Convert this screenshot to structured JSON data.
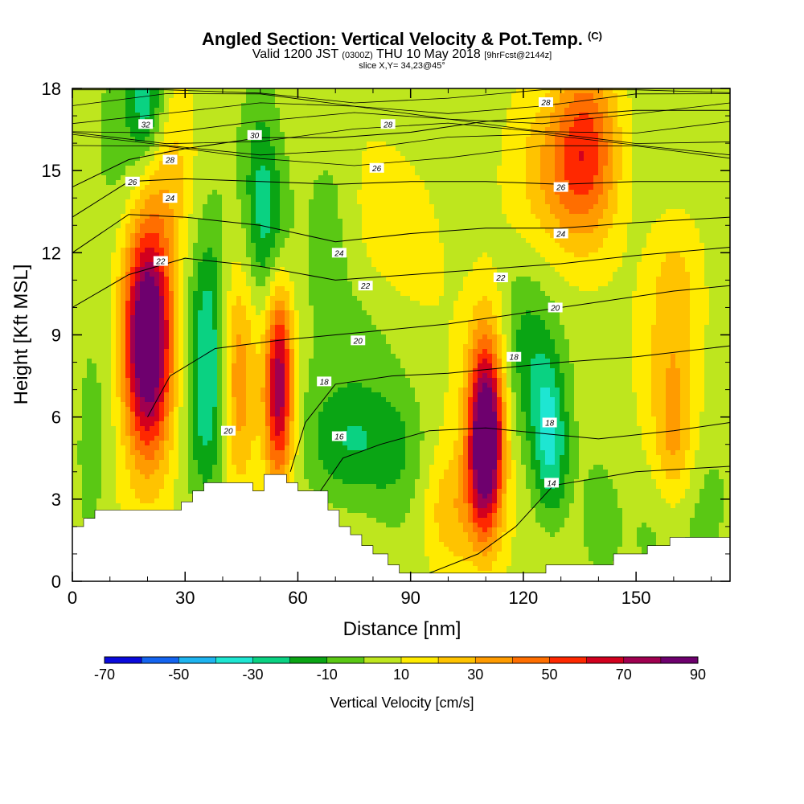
{
  "header": {
    "title": "Angled Section: Vertical Velocity & Pot.Temp.",
    "title_unit": "(C)",
    "valid_prefix": "Valid 1200 JST",
    "valid_z": "(0300Z)",
    "valid_date": "THU 10 May 2018",
    "valid_fcst": "[9hrFcst@2144z]",
    "slice": "slice X,Y= 34,23@45°"
  },
  "chart_data": {
    "type": "heatmap",
    "xlabel": "Distance [nm]",
    "ylabel": "Height [Kft MSL]",
    "xlim": [
      0,
      175
    ],
    "ylim": [
      0,
      18
    ],
    "x_ticks": [
      "0",
      "30",
      "60",
      "90",
      "120",
      "150"
    ],
    "y_ticks": [
      "0",
      "3",
      "6",
      "9",
      "12",
      "15",
      "18"
    ],
    "colorbar": {
      "label": "Vertical Velocity [cm/s]",
      "tick_labels": [
        "-70",
        "-50",
        "-30",
        "-10",
        "10",
        "30",
        "50",
        "70",
        "90"
      ],
      "levels": [
        -70,
        -60,
        -50,
        -40,
        -30,
        -20,
        -10,
        0,
        10,
        20,
        30,
        40,
        50,
        60,
        70,
        80,
        90
      ],
      "colors": [
        "#0a0adc",
        "#1464f0",
        "#1eb4f0",
        "#1ee6d2",
        "#0ad282",
        "#0aa514",
        "#5ac814",
        "#bee61e",
        "#ffeb00",
        "#ffc300",
        "#ff9b00",
        "#ff6e00",
        "#ff2800",
        "#d2001e",
        "#a00050",
        "#6e006e"
      ]
    },
    "velocity_cells": [
      {
        "x": 20,
        "z": 9.5,
        "w": 82,
        "sx": 4.5,
        "sz": 2.6
      },
      {
        "x": 20,
        "z": 6.8,
        "w": 35,
        "sx": 4.5,
        "sz": 2.5
      },
      {
        "x": 55,
        "z": 7.8,
        "w": 62,
        "sx": 2.6,
        "sz": 2.3
      },
      {
        "x": 55,
        "z": 5.2,
        "w": 22,
        "sx": 3,
        "sz": 1.8
      },
      {
        "x": 44,
        "z": 7.2,
        "w": 30,
        "sx": 3.2,
        "sz": 3
      },
      {
        "x": 110,
        "z": 4.8,
        "w": 82,
        "sx": 3.2,
        "sz": 2.2
      },
      {
        "x": 110,
        "z": 6.8,
        "w": 30,
        "sx": 3.5,
        "sz": 2.4
      },
      {
        "x": 101,
        "z": 2.5,
        "w": 24,
        "sx": 6,
        "sz": 1.8
      },
      {
        "x": 137,
        "z": 16,
        "w": 38,
        "sx": 6,
        "sz": 2.4
      },
      {
        "x": 130,
        "z": 14.8,
        "w": 20,
        "sx": 9,
        "sz": 2
      },
      {
        "x": 87,
        "z": 12.8,
        "w": 14,
        "sx": 8,
        "sz": 2
      },
      {
        "x": 160,
        "z": 5.2,
        "w": 26,
        "sx": 4,
        "sz": 2.2
      },
      {
        "x": 160,
        "z": 10.5,
        "w": 18,
        "sx": 5,
        "sz": 2.2
      },
      {
        "x": 26,
        "z": 15,
        "w": 18,
        "sx": 5,
        "sz": 2.5
      },
      {
        "x": 36,
        "z": 9,
        "w": -34,
        "sx": 3.8,
        "sz": 2.7
      },
      {
        "x": 36,
        "z": 5.5,
        "w": -18,
        "sx": 4,
        "sz": 2
      },
      {
        "x": 20,
        "z": 17.5,
        "w": -32,
        "sx": 3.5,
        "sz": 1.5
      },
      {
        "x": 13,
        "z": 16,
        "w": -14,
        "sx": 6,
        "sz": 2.5
      },
      {
        "x": 52,
        "z": 12.8,
        "w": -24,
        "sx": 4,
        "sz": 2.2
      },
      {
        "x": 50,
        "z": 15.5,
        "w": -12,
        "sx": 3,
        "sz": 2.2
      },
      {
        "x": 74,
        "z": 5,
        "w": -24,
        "sx": 9,
        "sz": 1.6
      },
      {
        "x": 88,
        "z": 4.6,
        "w": -12,
        "sx": 6,
        "sz": 2
      },
      {
        "x": 126,
        "z": 5.8,
        "w": -30,
        "sx": 3.2,
        "sz": 2.2
      },
      {
        "x": 129,
        "z": 4.4,
        "w": -16,
        "sx": 3,
        "sz": 1.8
      },
      {
        "x": 120,
        "z": 8.5,
        "w": -16,
        "sx": 4,
        "sz": 2.2
      },
      {
        "x": 140,
        "z": 2.2,
        "w": -14,
        "sx": 3.5,
        "sz": 1.5
      },
      {
        "x": 160,
        "z": 2.3,
        "w": -8,
        "sx": 8,
        "sz": 1.5
      },
      {
        "x": 68,
        "z": 13.5,
        "w": -12,
        "sx": 5,
        "sz": 2.5
      },
      {
        "x": 80,
        "z": 9.4,
        "w": -6,
        "sx": 9,
        "sz": 2
      },
      {
        "x": 5,
        "z": 4.2,
        "w": -10,
        "sx": 3,
        "sz": 3
      },
      {
        "x": 170,
        "z": 3,
        "w": -6,
        "sx": 5,
        "sz": 2
      }
    ],
    "terrain": [
      [
        0,
        2.0
      ],
      [
        3,
        2.0
      ],
      [
        3,
        2.3
      ],
      [
        6,
        2.3
      ],
      [
        6,
        2.6
      ],
      [
        24,
        2.6
      ],
      [
        29,
        2.6
      ],
      [
        29,
        2.9
      ],
      [
        32,
        2.9
      ],
      [
        32,
        3.3
      ],
      [
        35,
        3.3
      ],
      [
        35,
        3.6
      ],
      [
        48,
        3.6
      ],
      [
        48,
        3.3
      ],
      [
        51,
        3.3
      ],
      [
        51,
        3.9
      ],
      [
        57,
        3.9
      ],
      [
        57,
        3.6
      ],
      [
        60,
        3.6
      ],
      [
        60,
        3.3
      ],
      [
        68,
        3.3
      ],
      [
        68,
        2.6
      ],
      [
        71,
        2.6
      ],
      [
        71,
        2.0
      ],
      [
        74,
        2.0
      ],
      [
        74,
        1.7
      ],
      [
        77,
        1.7
      ],
      [
        77,
        1.3
      ],
      [
        80,
        1.3
      ],
      [
        80,
        1.0
      ],
      [
        84,
        1.0
      ],
      [
        84,
        0.6
      ],
      [
        87,
        0.6
      ],
      [
        87,
        0.3
      ],
      [
        126,
        0.3
      ],
      [
        126,
        0.6
      ],
      [
        144,
        0.6
      ],
      [
        144,
        1.0
      ],
      [
        153,
        1.0
      ],
      [
        153,
        1.3
      ],
      [
        159,
        1.3
      ],
      [
        159,
        1.6
      ],
      [
        175,
        1.6
      ]
    ],
    "theta_contours": [
      {
        "label": "14",
        "pts": [
          [
            95,
            0.3
          ],
          [
            108,
            1.0
          ],
          [
            118,
            2.0
          ],
          [
            128,
            3.5
          ],
          [
            150,
            4.0
          ],
          [
            175,
            4.2
          ]
        ]
      },
      {
        "label": "16",
        "pts": [
          [
            66,
            3.3
          ],
          [
            72,
            4.5
          ],
          [
            82,
            5.0
          ],
          [
            95,
            5.5
          ],
          [
            110,
            5.6
          ],
          [
            125,
            5.4
          ],
          [
            140,
            5.2
          ],
          [
            160,
            5.5
          ],
          [
            175,
            5.8
          ]
        ]
      },
      {
        "label": "18",
        "pts": [
          [
            58,
            4.0
          ],
          [
            62,
            5.8
          ],
          [
            70,
            7.2
          ],
          [
            85,
            7.5
          ],
          [
            100,
            7.6
          ],
          [
            115,
            7.8
          ],
          [
            130,
            8.0
          ],
          [
            150,
            8.2
          ],
          [
            175,
            8.6
          ]
        ]
      },
      {
        "label": "20",
        "pts": [
          [
            20,
            6.0
          ],
          [
            26,
            7.5
          ],
          [
            38,
            8.5
          ],
          [
            55,
            8.8
          ],
          [
            70,
            9.0
          ],
          [
            85,
            9.2
          ],
          [
            100,
            9.4
          ],
          [
            120,
            9.8
          ],
          [
            140,
            10.2
          ],
          [
            160,
            10.6
          ],
          [
            175,
            10.8
          ]
        ]
      },
      {
        "label": "22",
        "pts": [
          [
            0,
            10.0
          ],
          [
            15,
            11.2
          ],
          [
            30,
            11.8
          ],
          [
            50,
            11.5
          ],
          [
            70,
            11.0
          ],
          [
            90,
            11.2
          ],
          [
            110,
            11.4
          ],
          [
            130,
            11.6
          ],
          [
            150,
            11.9
          ],
          [
            175,
            12.2
          ]
        ]
      },
      {
        "label": "24",
        "pts": [
          [
            0,
            12.0
          ],
          [
            15,
            13.4
          ],
          [
            30,
            13.3
          ],
          [
            50,
            13.0
          ],
          [
            70,
            12.4
          ],
          [
            90,
            12.7
          ],
          [
            110,
            12.9
          ],
          [
            130,
            12.9
          ],
          [
            150,
            13.1
          ],
          [
            175,
            13.3
          ]
        ]
      },
      {
        "label": "26",
        "pts": [
          [
            0,
            13.3
          ],
          [
            15,
            14.6
          ],
          [
            30,
            14.7
          ],
          [
            50,
            14.6
          ],
          [
            70,
            14.5
          ],
          [
            90,
            14.6
          ],
          [
            110,
            14.6
          ],
          [
            130,
            14.5
          ],
          [
            150,
            14.6
          ],
          [
            175,
            14.6
          ]
        ]
      },
      {
        "label": "28",
        "pts": [
          [
            0,
            14.4
          ],
          [
            15,
            15.4
          ],
          [
            30,
            15.8
          ],
          [
            50,
            16.2
          ],
          [
            70,
            16.2
          ],
          [
            90,
            16.4
          ],
          [
            110,
            16.8
          ],
          [
            130,
            17.0
          ],
          [
            150,
            17.2
          ],
          [
            175,
            17.2
          ]
        ]
      }
    ],
    "contour_labels": [
      {
        "text": "32",
        "x": 19.5,
        "z": 16.7
      },
      {
        "text": "28",
        "x": 26,
        "z": 15.4
      },
      {
        "text": "26",
        "x": 16,
        "z": 14.6
      },
      {
        "text": "24",
        "x": 26,
        "z": 14.0
      },
      {
        "text": "30",
        "x": 48.5,
        "z": 16.3
      },
      {
        "text": "28",
        "x": 84,
        "z": 16.7
      },
      {
        "text": "28",
        "x": 126,
        "z": 17.5
      },
      {
        "text": "26",
        "x": 81,
        "z": 15.1
      },
      {
        "text": "26",
        "x": 130,
        "z": 14.4
      },
      {
        "text": "24",
        "x": 130,
        "z": 12.7
      },
      {
        "text": "24",
        "x": 71,
        "z": 12.0
      },
      {
        "text": "22",
        "x": 23.5,
        "z": 11.7
      },
      {
        "text": "22",
        "x": 78,
        "z": 10.8
      },
      {
        "text": "22",
        "x": 114,
        "z": 11.1
      },
      {
        "text": "20",
        "x": 128.5,
        "z": 10.0
      },
      {
        "text": "20",
        "x": 76,
        "z": 8.8
      },
      {
        "text": "20",
        "x": 41.5,
        "z": 5.5
      },
      {
        "text": "18",
        "x": 67,
        "z": 7.3
      },
      {
        "text": "18",
        "x": 117.5,
        "z": 8.2
      },
      {
        "text": "18",
        "x": 127,
        "z": 5.8
      },
      {
        "text": "16",
        "x": 71,
        "z": 5.3
      },
      {
        "text": "14",
        "x": 127.5,
        "z": 3.6
      }
    ]
  }
}
